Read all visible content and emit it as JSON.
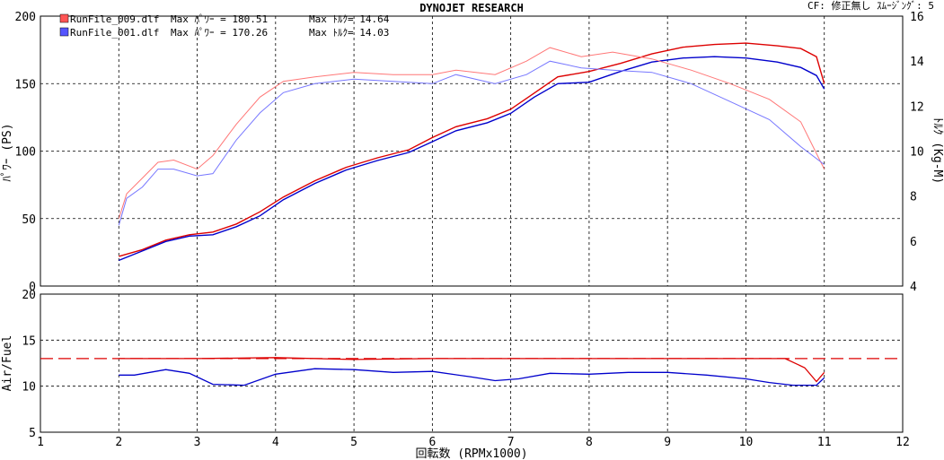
{
  "header": {
    "title": "DYNOJET  RESEARCH",
    "cf_label": "CF: 修正無し  ｽﾑｰｼﾞﾝｸﾞ: 5"
  },
  "legend": [
    {
      "file": "RunFile_009.dlf",
      "max_power": "Max ﾊﾟﾜｰ = 180.51",
      "max_torque": "Max ﾄﾙｸ= 14.64",
      "color": "#dd0000"
    },
    {
      "file": "RunFile_001.dlf",
      "max_power": "Max ﾊﾟﾜｰ = 170.26",
      "max_torque": "Max ﾄﾙｸ= 14.03",
      "color": "#0000cc"
    }
  ],
  "chart_data": [
    {
      "type": "line",
      "title": "DYNOJET  RESEARCH",
      "xlabel": "回転数 (RPMx1000)",
      "ylabel": "ﾊﾟﾜｰ (PS)",
      "y2label": "ﾄﾙｸ (Kg-M)",
      "xlim": [
        1,
        12
      ],
      "ylim": [
        0,
        200
      ],
      "y2lim": [
        4,
        16
      ],
      "x_ticks": [
        1,
        2,
        3,
        4,
        5,
        6,
        7,
        8,
        9,
        10,
        11,
        12
      ],
      "y_ticks": [
        0,
        50,
        100,
        150,
        200
      ],
      "y2_ticks": [
        4,
        6,
        8,
        10,
        12,
        14,
        16
      ],
      "grid": true,
      "series": [
        {
          "name": "RunFile_009.dlf",
          "measure": "power",
          "color": "#dd0000",
          "x": [
            2.0,
            2.3,
            2.6,
            2.9,
            3.2,
            3.5,
            3.8,
            4.1,
            4.5,
            4.9,
            5.3,
            5.7,
            6.0,
            6.3,
            6.7,
            7.0,
            7.3,
            7.6,
            8.0,
            8.4,
            8.8,
            9.2,
            9.6,
            10.0,
            10.4,
            10.7,
            10.9,
            11.0
          ],
          "y": [
            22,
            27,
            34,
            38,
            40,
            46,
            55,
            66,
            78,
            88,
            95,
            101,
            110,
            118,
            124,
            131,
            143,
            155,
            159,
            165,
            172,
            177,
            179,
            180,
            178,
            176,
            170,
            150
          ]
        },
        {
          "name": "RunFile_001.dlf",
          "measure": "power",
          "color": "#0000cc",
          "x": [
            2.0,
            2.3,
            2.6,
            2.9,
            3.2,
            3.5,
            3.8,
            4.1,
            4.5,
            4.9,
            5.3,
            5.7,
            6.0,
            6.3,
            6.7,
            7.0,
            7.3,
            7.6,
            8.0,
            8.4,
            8.8,
            9.2,
            9.6,
            10.0,
            10.4,
            10.7,
            10.9,
            11.0
          ],
          "y": [
            19,
            26,
            33,
            37,
            38,
            44,
            52,
            64,
            76,
            86,
            93,
            99,
            107,
            115,
            121,
            128,
            140,
            150,
            151,
            159,
            166,
            169,
            170,
            169,
            166,
            162,
            156,
            146
          ]
        },
        {
          "name": "RunFile_009.dlf",
          "measure": "torque",
          "color": "#ff7777",
          "x": [
            2.0,
            2.1,
            2.3,
            2.5,
            2.7,
            3.0,
            3.2,
            3.5,
            3.8,
            4.1,
            4.5,
            5.0,
            5.5,
            6.0,
            6.3,
            6.8,
            7.2,
            7.5,
            7.9,
            8.3,
            8.8,
            9.3,
            9.8,
            10.3,
            10.7,
            11.0
          ],
          "y": [
            7.0,
            8.1,
            8.8,
            9.5,
            9.6,
            9.2,
            9.8,
            11.2,
            12.4,
            13.1,
            13.3,
            13.5,
            13.4,
            13.4,
            13.6,
            13.4,
            14.0,
            14.6,
            14.2,
            14.4,
            14.1,
            13.6,
            13.0,
            12.3,
            11.3,
            9.2
          ]
        },
        {
          "name": "RunFile_001.dlf",
          "measure": "torque",
          "color": "#7777ff",
          "x": [
            2.0,
            2.1,
            2.3,
            2.5,
            2.7,
            3.0,
            3.2,
            3.5,
            3.8,
            4.1,
            4.5,
            5.0,
            5.5,
            6.0,
            6.3,
            6.8,
            7.2,
            7.5,
            7.9,
            8.3,
            8.8,
            9.3,
            9.8,
            10.3,
            10.7,
            11.0
          ],
          "y": [
            6.7,
            7.9,
            8.4,
            9.2,
            9.2,
            8.9,
            9.0,
            10.5,
            11.7,
            12.6,
            13.0,
            13.2,
            13.1,
            13.0,
            13.4,
            13.0,
            13.4,
            14.0,
            13.7,
            13.6,
            13.5,
            13.0,
            12.2,
            11.4,
            10.2,
            9.4
          ]
        }
      ]
    },
    {
      "type": "line",
      "ylabel": "Air/Fuel",
      "xlabel": "回転数 (RPMx1000)",
      "xlim": [
        1,
        12
      ],
      "ylim": [
        5,
        20
      ],
      "x_ticks": [
        1,
        2,
        3,
        4,
        5,
        6,
        7,
        8,
        9,
        10,
        11,
        12
      ],
      "y_ticks": [
        5,
        10,
        15,
        20
      ],
      "grid": true,
      "reference_line": {
        "y": 13.0,
        "color": "#dd0000",
        "style": "dashed"
      },
      "series": [
        {
          "name": "RunFile_009.dlf",
          "color": "#dd0000",
          "x": [
            2.0,
            3.0,
            4.0,
            5.0,
            6.0,
            7.0,
            8.0,
            9.0,
            10.0,
            10.5,
            10.75,
            10.9,
            11.0
          ],
          "y": [
            13.0,
            13.0,
            13.1,
            12.9,
            13.0,
            13.0,
            13.0,
            13.0,
            13.0,
            13.0,
            12.0,
            10.5,
            11.5
          ]
        },
        {
          "name": "RunFile_001.dlf",
          "color": "#0000cc",
          "x": [
            2.0,
            2.2,
            2.6,
            2.9,
            3.2,
            3.6,
            4.0,
            4.5,
            5.0,
            5.5,
            6.0,
            6.5,
            6.8,
            7.1,
            7.5,
            8.0,
            8.5,
            9.0,
            9.5,
            10.0,
            10.3,
            10.6,
            10.9,
            11.0
          ],
          "y": [
            11.2,
            11.2,
            11.8,
            11.4,
            10.2,
            10.1,
            11.3,
            11.9,
            11.8,
            11.5,
            11.6,
            11.0,
            10.6,
            10.8,
            11.4,
            11.3,
            11.5,
            11.5,
            11.2,
            10.8,
            10.4,
            10.1,
            10.1,
            10.9
          ]
        }
      ]
    }
  ]
}
